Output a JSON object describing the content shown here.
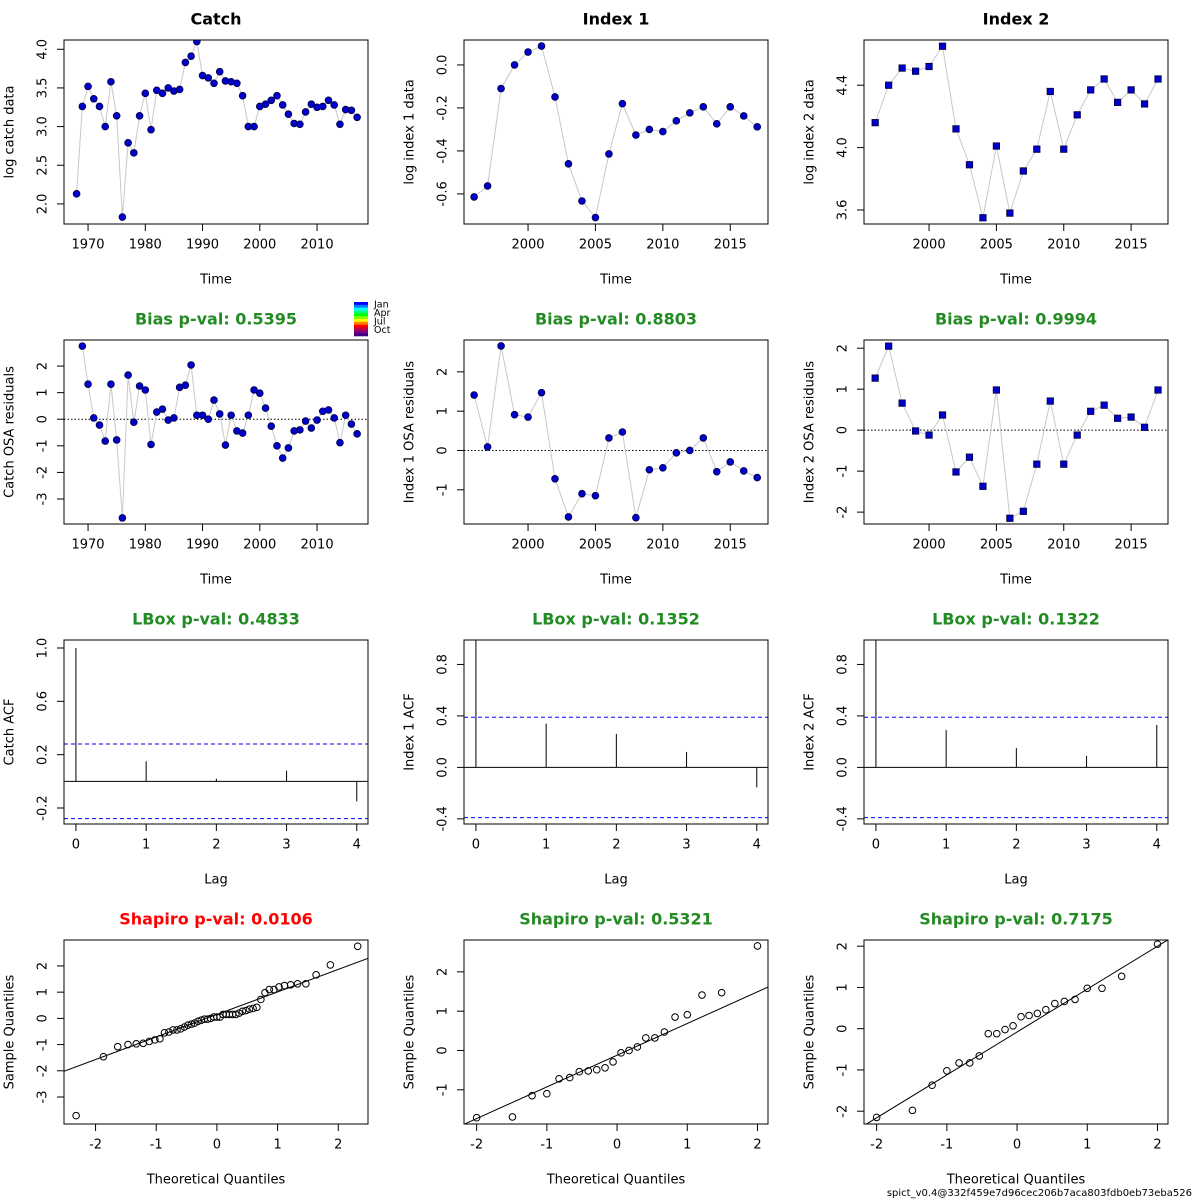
{
  "chart_data": [
    {
      "type": "line",
      "title": "Catch",
      "title_color": "#000000",
      "xlabel": "Time",
      "ylabel": "log catch data",
      "marker": "circle",
      "color": "#0000cd",
      "line_color": "#c8c8c8",
      "x": [
        1968,
        1969,
        1970,
        1971,
        1972,
        1973,
        1974,
        1975,
        1976,
        1977,
        1978,
        1979,
        1980,
        1981,
        1982,
        1983,
        1984,
        1985,
        1986,
        1987,
        1988,
        1989,
        1990,
        1991,
        1992,
        1993,
        1994,
        1995,
        1996,
        1997,
        1998,
        1999,
        2000,
        2001,
        2002,
        2003,
        2004,
        2005,
        2006,
        2007,
        2008,
        2009,
        2010,
        2011,
        2012,
        2013,
        2014,
        2015,
        2016,
        2017
      ],
      "values": [
        2.13,
        3.26,
        3.52,
        3.36,
        3.26,
        3.0,
        3.58,
        3.14,
        1.83,
        2.79,
        2.66,
        3.14,
        3.43,
        2.96,
        3.47,
        3.43,
        3.5,
        3.46,
        3.48,
        3.83,
        3.91,
        4.1,
        3.66,
        3.63,
        3.56,
        3.71,
        3.59,
        3.58,
        3.56,
        3.4,
        3.0,
        3.0,
        3.26,
        3.29,
        3.34,
        3.4,
        3.28,
        3.16,
        3.04,
        3.03,
        3.19,
        3.29,
        3.25,
        3.26,
        3.34,
        3.28,
        3.03,
        3.22,
        3.21,
        3.12
      ],
      "xlim": [
        1965.8,
        2018.9
      ],
      "ylim": [
        1.74,
        4.12
      ],
      "xticks": [
        1970,
        1980,
        1990,
        2000,
        2010
      ],
      "yticks": [
        {
          "value": 2,
          "label": "2.0"
        },
        2.5,
        {
          "value": 3,
          "label": "3.0"
        },
        3.5,
        {
          "value": 4,
          "label": "4.0"
        }
      ]
    },
    {
      "type": "line",
      "title": "Index 1",
      "title_color": "#000000",
      "xlabel": "Time",
      "ylabel": "log index 1 data",
      "marker": "circle",
      "color": "#0000cd",
      "line_color": "#c8c8c8",
      "x": [
        1996,
        1997,
        1998,
        1999,
        2000,
        2001,
        2002,
        2003,
        2004,
        2005,
        2006,
        2007,
        2008,
        2009,
        2010,
        2011,
        2012,
        2013,
        2014,
        2015,
        2016,
        2017
      ],
      "values": [
        -0.614,
        -0.563,
        -0.11,
        0.0,
        0.06,
        0.088,
        -0.149,
        -0.46,
        -0.633,
        -0.71,
        -0.414,
        -0.18,
        -0.326,
        -0.3,
        -0.31,
        -0.26,
        -0.223,
        -0.195,
        -0.274,
        -0.195,
        -0.237,
        -0.288
      ],
      "xlim": [
        1995.25,
        2017.8
      ],
      "ylim": [
        -0.74,
        0.116
      ],
      "xticks": [
        2000,
        2005,
        2010,
        2015
      ],
      "yticks": [
        -0.6,
        -0.4,
        -0.2,
        {
          "value": 0,
          "label": "0.0"
        }
      ]
    },
    {
      "type": "line",
      "title": "Index 2",
      "title_color": "#000000",
      "xlabel": "Time",
      "ylabel": "log index 2 data",
      "marker": "square",
      "color": "#0000cd",
      "line_color": "#c8c8c8",
      "x": [
        1996,
        1997,
        1998,
        1999,
        2000,
        2001,
        2002,
        2003,
        2004,
        2005,
        2006,
        2007,
        2008,
        2009,
        2010,
        2011,
        2012,
        2013,
        2014,
        2015,
        2016,
        2017
      ],
      "values": [
        4.16,
        4.4,
        4.51,
        4.49,
        4.52,
        4.65,
        4.12,
        3.89,
        3.55,
        4.01,
        3.58,
        3.85,
        3.99,
        4.36,
        3.99,
        4.21,
        4.37,
        4.44,
        4.29,
        4.37,
        4.28,
        4.44
      ],
      "xlim": [
        1995.17,
        2017.74
      ],
      "ylim": [
        3.51,
        4.69
      ],
      "xticks": [
        2000,
        2005,
        2010,
        2015
      ],
      "yticks": [
        3.6,
        {
          "value": 4,
          "label": "4.0"
        },
        4.4
      ]
    },
    {
      "type": "line",
      "title": "Bias p-val: 0.5395",
      "title_color": "#228b22",
      "xlabel": "Time",
      "ylabel": "Catch OSA residuals",
      "marker": "circle",
      "color": "#0000cd",
      "line_color": "#c8c8c8",
      "hline": 0,
      "x": [
        1969,
        1970,
        1971,
        1972,
        1973,
        1974,
        1975,
        1976,
        1977,
        1978,
        1979,
        1980,
        1981,
        1982,
        1983,
        1984,
        1985,
        1986,
        1987,
        1988,
        1989,
        1990,
        1991,
        1992,
        1993,
        1994,
        1995,
        1996,
        1997,
        1998,
        1999,
        2000,
        2001,
        2002,
        2003,
        2004,
        2005,
        2006,
        2007,
        2008,
        2009,
        2010,
        2011,
        2012,
        2013,
        2014,
        2015,
        2016,
        2017
      ],
      "values": [
        2.75,
        1.32,
        0.05,
        -0.22,
        -0.82,
        1.32,
        -0.78,
        -3.71,
        1.66,
        -0.11,
        1.25,
        1.1,
        -0.95,
        0.27,
        0.38,
        -0.03,
        0.05,
        1.2,
        1.28,
        2.04,
        0.15,
        0.15,
        0.0,
        0.72,
        0.2,
        -0.97,
        0.15,
        -0.44,
        -0.52,
        0.15,
        1.1,
        0.98,
        0.42,
        -0.26,
        -1.0,
        -1.46,
        -1.08,
        -0.44,
        -0.4,
        -0.07,
        -0.33,
        -0.03,
        0.3,
        0.35,
        0.05,
        -0.88,
        0.15,
        -0.18,
        -0.55
      ],
      "xlim": [
        1965.8,
        2018.9
      ],
      "ylim": [
        -3.94,
        2.98
      ],
      "xticks": [
        1970,
        1980,
        1990,
        2000,
        2010
      ],
      "yticks": [
        -3,
        -2,
        -1,
        0,
        1,
        2
      ],
      "month_legend": {
        "labels": [
          "Jan",
          "Apr",
          "Jul",
          "Oct"
        ],
        "colors": [
          "#0000ff",
          "#0080ff",
          "#00ffff",
          "#00ff80",
          "#00ff00",
          "#80ff00",
          "#ffff00",
          "#ff8000",
          "#ff0000",
          "#c00040",
          "#800080",
          "#400080"
        ]
      }
    },
    {
      "type": "line",
      "title": "Bias p-val: 0.8803",
      "title_color": "#228b22",
      "xlabel": "Time",
      "ylabel": "Index 1 OSA residuals",
      "marker": "circle",
      "color": "#0000cd",
      "line_color": "#c8c8c8",
      "hline": 0,
      "x": [
        1996,
        1997,
        1998,
        1999,
        2000,
        2001,
        2002,
        2003,
        2004,
        2005,
        2006,
        2007,
        2008,
        2009,
        2010,
        2011,
        2012,
        2013,
        2014,
        2015,
        2016,
        2017
      ],
      "values": [
        1.41,
        0.09,
        2.66,
        0.91,
        0.85,
        1.47,
        -0.72,
        -1.69,
        -1.1,
        -1.15,
        0.32,
        0.47,
        -1.71,
        -0.49,
        -0.44,
        -0.06,
        0.0,
        0.32,
        -0.54,
        -0.29,
        -0.52,
        -0.69
      ],
      "xlim": [
        1995.25,
        2017.8
      ],
      "ylim": [
        -1.87,
        2.81
      ],
      "xticks": [
        2000,
        2005,
        2010,
        2015
      ],
      "yticks": [
        -1,
        0,
        1,
        2
      ]
    },
    {
      "type": "line",
      "title": "Bias p-val: 0.9994",
      "title_color": "#228b22",
      "xlabel": "Time",
      "ylabel": "Index 2 OSA residuals",
      "marker": "square",
      "color": "#0000cd",
      "line_color": "#c8c8c8",
      "hline": 0,
      "x": [
        1996,
        1997,
        1998,
        1999,
        2000,
        2001,
        2002,
        2003,
        2004,
        2005,
        2006,
        2007,
        2008,
        2009,
        2010,
        2011,
        2012,
        2013,
        2014,
        2015,
        2016,
        2017
      ],
      "values": [
        1.27,
        2.05,
        0.66,
        -0.02,
        -0.12,
        0.37,
        -1.02,
        -0.66,
        -1.37,
        0.98,
        -2.15,
        -1.98,
        -0.83,
        0.71,
        -0.83,
        -0.12,
        0.46,
        0.61,
        0.29,
        0.32,
        0.07,
        0.98
      ],
      "xlim": [
        1995.17,
        2017.74
      ],
      "ylim": [
        -2.29,
        2.2
      ],
      "xticks": [
        2000,
        2005,
        2010,
        2015
      ],
      "yticks": [
        -2,
        -1,
        0,
        1,
        2
      ]
    },
    {
      "type": "acf",
      "title": "LBox p-val: 0.4833",
      "title_color": "#228b22",
      "xlabel": "Lag",
      "ylabel": "Catch ACF",
      "color": "#000000",
      "conf_color": "#0000ff",
      "x": [
        0,
        1,
        2,
        3,
        4
      ],
      "values": [
        1.0,
        0.15,
        0.02,
        0.08,
        -0.15
      ],
      "conf_limits": [
        0.28,
        -0.28
      ],
      "xlim": [
        -0.17,
        4.16
      ],
      "ylim": [
        -0.32,
        1.06
      ],
      "xticks": [
        0,
        1,
        2,
        3,
        4
      ],
      "yticks": [
        -0.2,
        0.2,
        0.6,
        {
          "value": 1,
          "label": "1.0"
        }
      ]
    },
    {
      "type": "acf",
      "title": "LBox p-val: 0.1352",
      "title_color": "#228b22",
      "xlabel": "Lag",
      "ylabel": "Index 1 ACF",
      "color": "#000000",
      "conf_color": "#0000ff",
      "x": [
        0,
        1,
        2,
        3,
        4
      ],
      "values": [
        1.0,
        0.34,
        0.26,
        0.12,
        -0.155
      ],
      "conf_limits": [
        0.39,
        -0.39
      ],
      "xlim": [
        -0.17,
        4.16
      ],
      "ylim": [
        -0.44,
        0.99
      ],
      "xticks": [
        0,
        1,
        2,
        3,
        4
      ],
      "yticks": [
        -0.4,
        {
          "value": 0,
          "label": "0.0"
        },
        0.4,
        0.8
      ]
    },
    {
      "type": "acf",
      "title": "LBox p-val: 0.1322",
      "title_color": "#228b22",
      "xlabel": "Lag",
      "ylabel": "Index 2 ACF",
      "color": "#000000",
      "conf_color": "#0000ff",
      "x": [
        0,
        1,
        2,
        3,
        4
      ],
      "values": [
        1.0,
        0.29,
        0.15,
        0.09,
        0.33
      ],
      "conf_limits": [
        0.39,
        -0.39
      ],
      "xlim": [
        -0.17,
        4.16
      ],
      "ylim": [
        -0.44,
        0.99
      ],
      "xticks": [
        0,
        1,
        2,
        3,
        4
      ],
      "yticks": [
        -0.4,
        {
          "value": 0,
          "label": "0.0"
        },
        0.4,
        0.8
      ]
    },
    {
      "type": "qq",
      "title": "Shapiro p-val: 0.0106",
      "title_color": "#ff0000",
      "xlabel": "Theoretical Quantiles",
      "ylabel": "Sample Quantiles",
      "color": "#000000",
      "x": [
        -2.32,
        -1.87,
        -1.635,
        -1.466,
        -1.329,
        -1.215,
        -1.114,
        -1.023,
        -0.94,
        -0.864,
        -0.792,
        -0.724,
        -0.658,
        -0.596,
        -0.536,
        -0.478,
        -0.421,
        -0.366,
        -0.311,
        -0.258,
        -0.206,
        -0.154,
        -0.102,
        -0.051,
        0,
        0.051,
        0.102,
        0.154,
        0.206,
        0.258,
        0.311,
        0.366,
        0.421,
        0.478,
        0.536,
        0.596,
        0.658,
        0.724,
        0.792,
        0.864,
        0.94,
        1.023,
        1.114,
        1.215,
        1.329,
        1.466,
        1.635,
        1.87,
        2.32
      ],
      "values": [
        -3.71,
        -1.46,
        -1.08,
        -1.0,
        -0.97,
        -0.95,
        -0.88,
        -0.82,
        -0.78,
        -0.55,
        -0.52,
        -0.44,
        -0.44,
        -0.4,
        -0.33,
        -0.26,
        -0.22,
        -0.18,
        -0.11,
        -0.07,
        -0.03,
        -0.03,
        0.0,
        0.05,
        0.05,
        0.05,
        0.15,
        0.15,
        0.15,
        0.15,
        0.15,
        0.2,
        0.27,
        0.3,
        0.35,
        0.38,
        0.42,
        0.72,
        0.98,
        1.1,
        1.1,
        1.2,
        1.25,
        1.28,
        1.32,
        1.32,
        1.66,
        2.04,
        2.75
      ],
      "qqline": {
        "intercept": 0.15,
        "slope": 0.86
      },
      "xlim": [
        -2.52,
        2.49
      ],
      "ylim": [
        -4.03,
        2.99
      ],
      "xticks": [
        -2,
        -1,
        0,
        1,
        2
      ],
      "yticks": [
        -3,
        -2,
        -1,
        0,
        1,
        2
      ]
    },
    {
      "type": "qq",
      "title": "Shapiro p-val: 0.5321",
      "title_color": "#228b22",
      "xlabel": "Theoretical Quantiles",
      "ylabel": "Sample Quantiles",
      "color": "#000000",
      "x": [
        -2.0,
        -1.49,
        -1.21,
        -1.0,
        -0.826,
        -0.674,
        -0.538,
        -0.41,
        -0.289,
        -0.171,
        -0.057,
        0.057,
        0.171,
        0.289,
        0.41,
        0.538,
        0.674,
        0.826,
        1.0,
        1.21,
        1.49,
        2.0
      ],
      "values": [
        -1.71,
        -1.69,
        -1.15,
        -1.1,
        -0.72,
        -0.69,
        -0.54,
        -0.52,
        -0.49,
        -0.44,
        -0.29,
        -0.06,
        0.0,
        0.09,
        0.32,
        0.32,
        0.47,
        0.85,
        0.91,
        1.41,
        1.47,
        2.66
      ],
      "qqline": {
        "intercept": -0.12,
        "slope": 0.806
      },
      "xlim": [
        -2.18,
        2.15
      ],
      "ylim": [
        -1.87,
        2.81
      ],
      "xticks": [
        -2,
        -1,
        0,
        1,
        2
      ],
      "yticks": [
        -1,
        0,
        1,
        2
      ]
    },
    {
      "type": "qq",
      "title": "Shapiro p-val: 0.7175",
      "title_color": "#228b22",
      "xlabel": "Theoretical Quantiles",
      "ylabel": "Sample Quantiles",
      "color": "#000000",
      "x": [
        -2.0,
        -1.49,
        -1.21,
        -1.0,
        -0.826,
        -0.674,
        -0.538,
        -0.41,
        -0.289,
        -0.171,
        -0.057,
        0.057,
        0.171,
        0.289,
        0.41,
        0.538,
        0.674,
        0.826,
        1.0,
        1.21,
        1.49,
        2.0
      ],
      "values": [
        -2.15,
        -1.98,
        -1.37,
        -1.02,
        -0.83,
        -0.83,
        -0.66,
        -0.12,
        -0.12,
        -0.02,
        0.07,
        0.29,
        0.32,
        0.37,
        0.46,
        0.61,
        0.66,
        0.71,
        0.98,
        0.98,
        1.27,
        2.05
      ],
      "qqline": {
        "intercept": -0.08,
        "slope": 1.04
      },
      "xlim": [
        -2.18,
        2.15
      ],
      "ylim": [
        -2.31,
        2.15
      ],
      "xticks": [
        -2,
        -1,
        0,
        1,
        2
      ],
      "yticks": [
        -2,
        -1,
        0,
        1,
        2
      ]
    }
  ],
  "footnote": "spict_v0.4@332f459e7d96cec206b7aca803fdb0eb73eba526"
}
